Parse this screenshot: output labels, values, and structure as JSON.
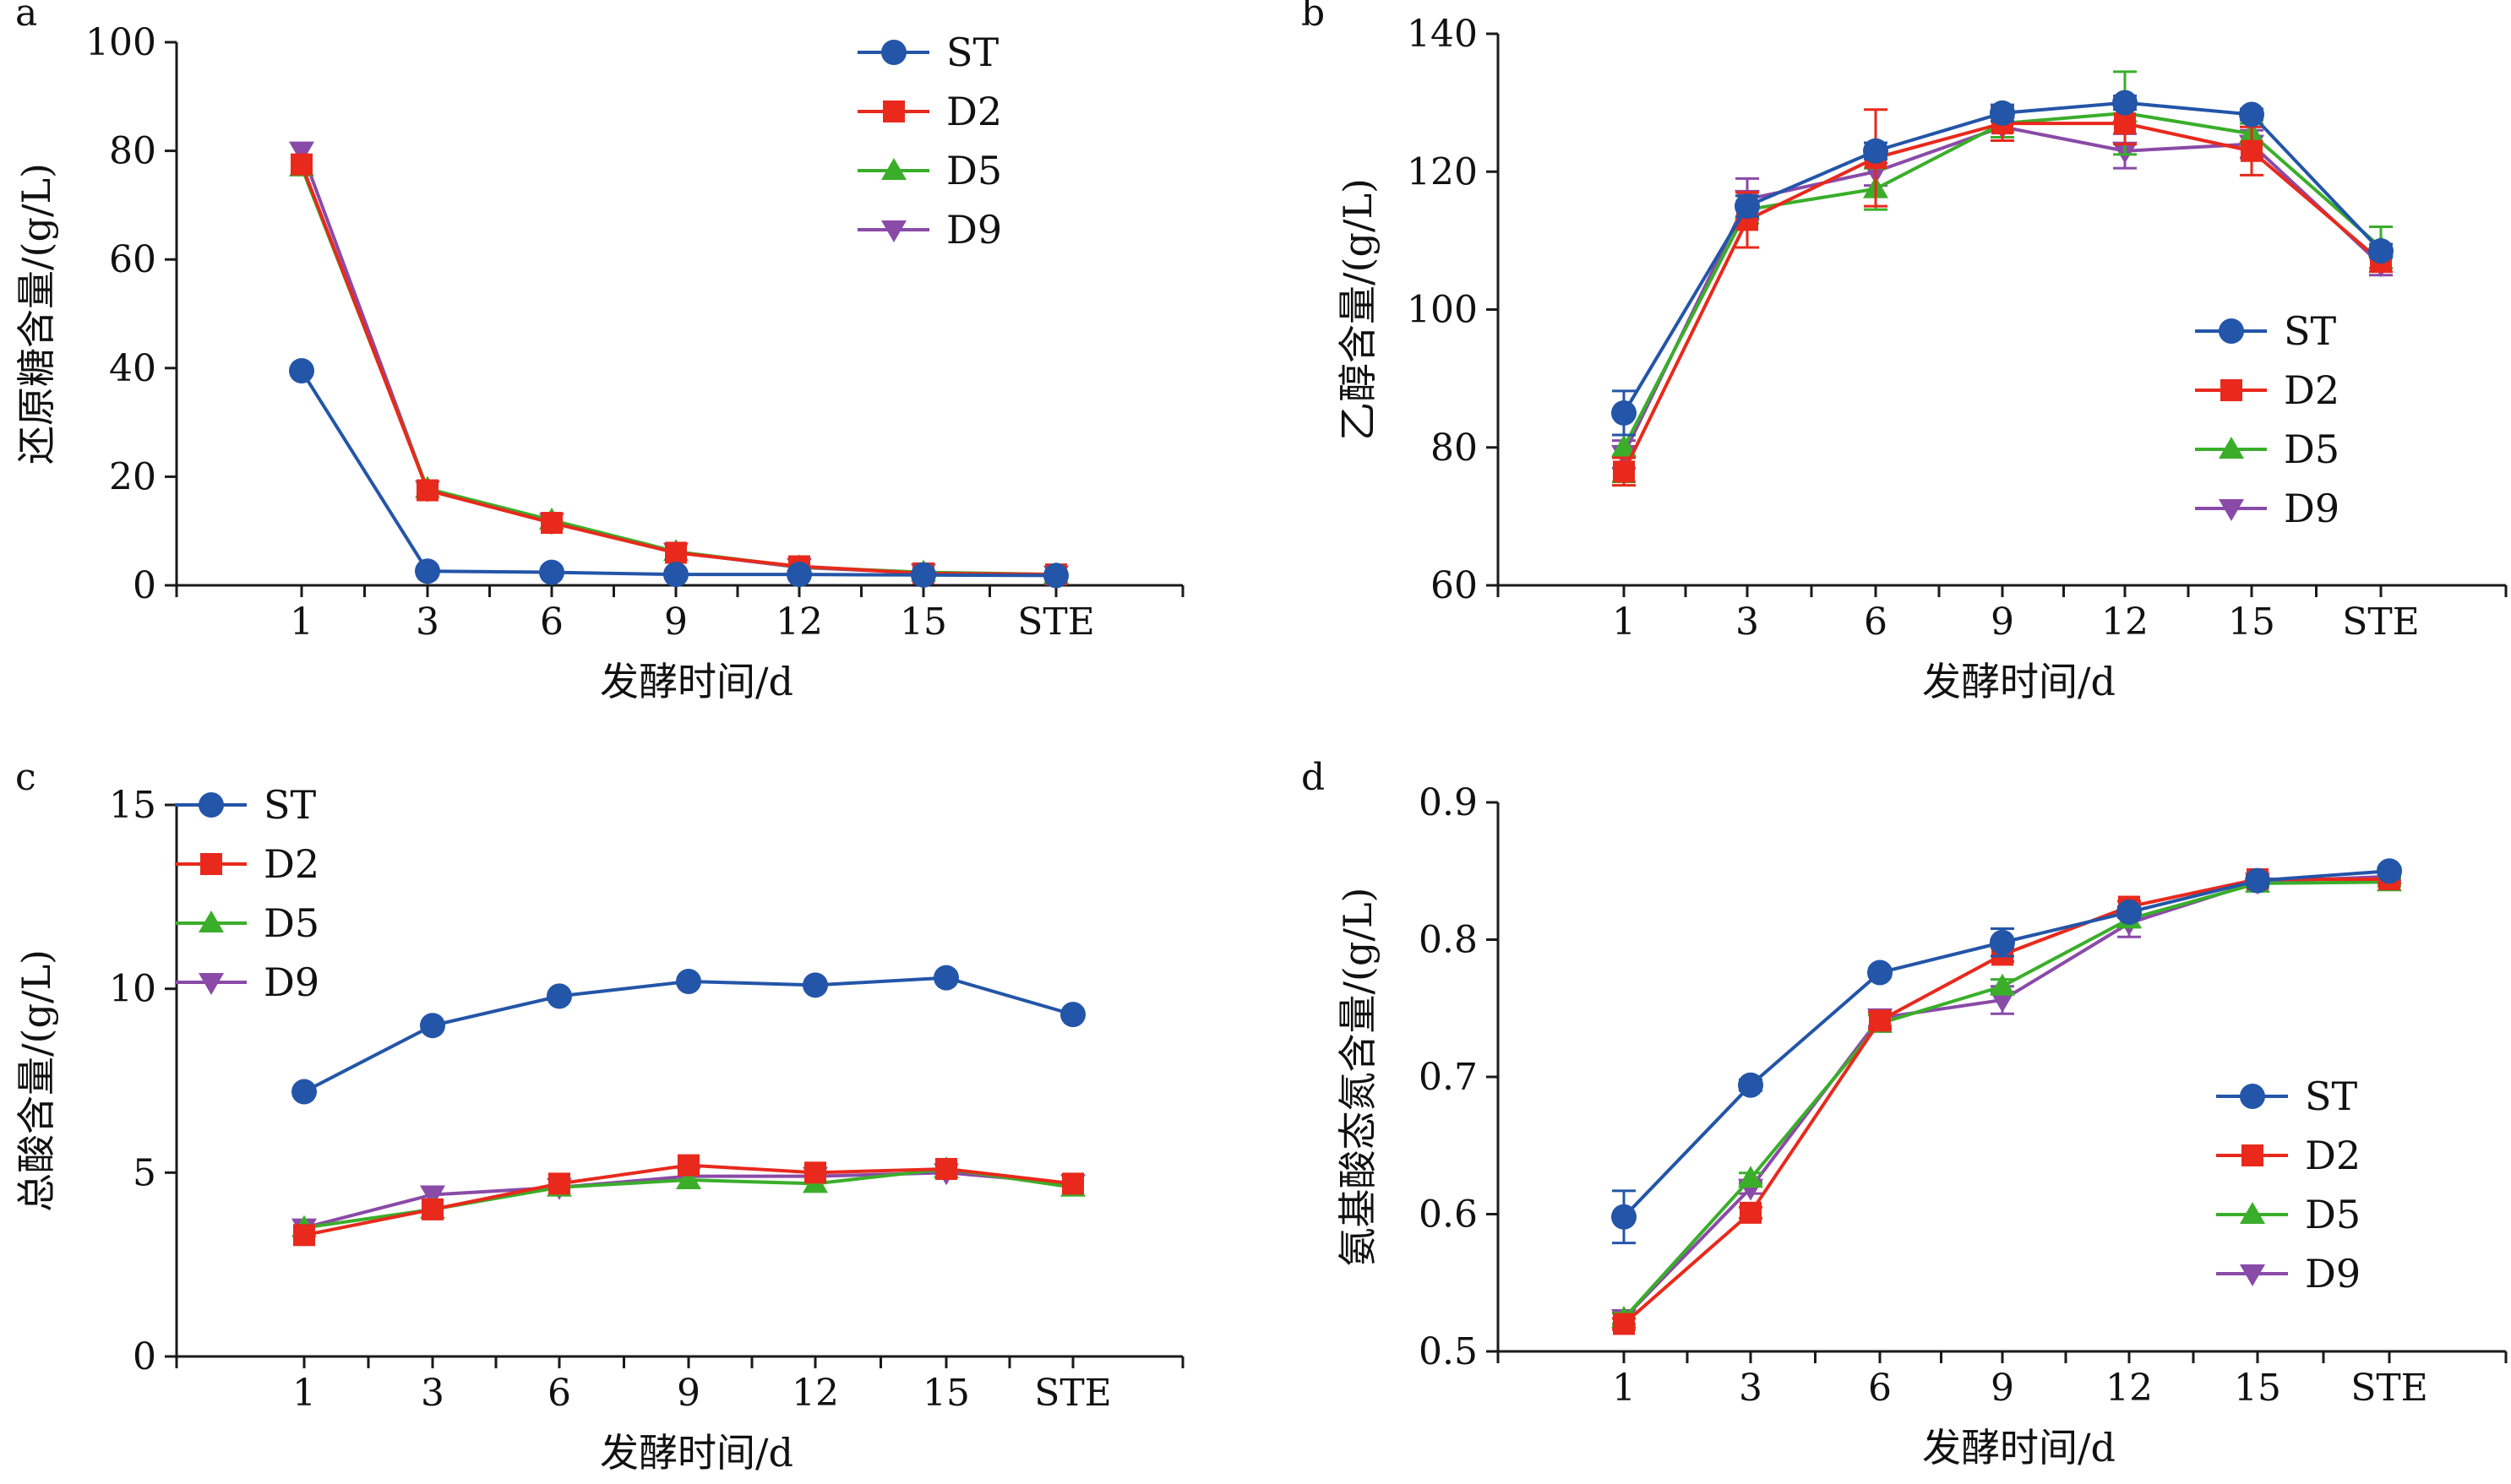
{
  "legend_labels": [
    "ST",
    "D2",
    "D5",
    "D9"
  ],
  "series_colors": {
    "ST": "#2355a8",
    "D2": "#e8291c",
    "D5": "#3aae2a",
    "D9": "#8a4aa8"
  },
  "series_markers": {
    "ST": "circle",
    "D2": "square",
    "D5": "triangle-up",
    "D9": "triangle-down"
  },
  "chart_data": [
    {
      "panel": "a",
      "type": "line",
      "xlabel": "发酵时间/d",
      "ylabel": "还原糖含量/(g/L)",
      "categories": [
        "1",
        "3",
        "6",
        "9",
        "12",
        "15",
        "STE"
      ],
      "ylim": [
        0,
        100
      ],
      "yticks": [
        "0",
        "20",
        "40",
        "60",
        "80",
        "100"
      ],
      "legend_position": "top-right",
      "series": [
        {
          "name": "ST",
          "values": [
            39.5,
            2.6,
            2.4,
            2.0,
            2.0,
            1.9,
            1.8
          ]
        },
        {
          "name": "D2",
          "values": [
            77.5,
            17.5,
            11.5,
            6.0,
            3.5,
            2.2,
            2.0
          ]
        },
        {
          "name": "D5",
          "values": [
            77.0,
            17.8,
            12.0,
            6.2,
            3.4,
            2.4,
            2.0
          ]
        },
        {
          "name": "D9",
          "values": [
            80.0,
            17.6,
            11.6,
            6.1,
            3.3,
            2.3,
            1.9
          ]
        }
      ]
    },
    {
      "panel": "b",
      "type": "line",
      "xlabel": "发酵时间/d",
      "ylabel": "乙醇含量/(g/L)",
      "categories": [
        "1",
        "3",
        "6",
        "9",
        "12",
        "15",
        "STE"
      ],
      "ylim": [
        60,
        140
      ],
      "yticks": [
        "60",
        "80",
        "100",
        "120",
        "140"
      ],
      "legend_position": "center-right",
      "series": [
        {
          "name": "ST",
          "values": [
            85.0,
            115.0,
            123.0,
            128.5,
            130.0,
            128.3,
            108.5
          ],
          "errors": [
            3.2,
            1.5,
            1.2,
            1.2,
            1.0,
            0.8,
            1.0
          ]
        },
        {
          "name": "D2",
          "values": [
            76.5,
            113.0,
            122.0,
            127.0,
            127.0,
            123.0,
            107.0
          ],
          "errors": [
            2.0,
            4.0,
            7.0,
            2.5,
            3.0,
            3.5,
            1.5
          ]
        },
        {
          "name": "D5",
          "values": [
            80.0,
            114.5,
            117.5,
            127.0,
            128.5,
            125.5,
            109.0
          ],
          "errors": [
            5.0,
            2.0,
            3.0,
            2.0,
            6.0,
            1.5,
            3.0
          ]
        },
        {
          "name": "D9",
          "values": [
            79.0,
            116.0,
            120.0,
            126.5,
            123.0,
            124.0,
            106.5
          ],
          "errors": [
            2.0,
            3.0,
            2.0,
            2.0,
            2.5,
            2.0,
            1.5
          ]
        }
      ]
    },
    {
      "panel": "c",
      "type": "line",
      "xlabel": "发酵时间/d",
      "ylabel": "总酸含量/(g/L)",
      "categories": [
        "1",
        "3",
        "6",
        "9",
        "12",
        "15",
        "STE"
      ],
      "ylim": [
        0,
        15
      ],
      "yticks": [
        "0",
        "5",
        "10",
        "15"
      ],
      "legend_position": "top-left",
      "series": [
        {
          "name": "ST",
          "values": [
            7.2,
            9.0,
            9.8,
            10.2,
            10.1,
            10.3,
            9.3
          ]
        },
        {
          "name": "D2",
          "values": [
            3.3,
            4.0,
            4.7,
            5.2,
            5.0,
            5.1,
            4.7
          ]
        },
        {
          "name": "D5",
          "values": [
            3.5,
            4.0,
            4.6,
            4.8,
            4.7,
            5.1,
            4.6
          ]
        },
        {
          "name": "D9",
          "values": [
            3.5,
            4.4,
            4.6,
            4.9,
            4.9,
            5.0,
            4.7
          ]
        }
      ]
    },
    {
      "panel": "d",
      "type": "line",
      "xlabel": "发酵时间/d",
      "ylabel": "氨基酸态氮含量/(g/L)",
      "categories": [
        "1",
        "3",
        "6",
        "9",
        "12",
        "15",
        "STE"
      ],
      "ylim": [
        0.5,
        0.9
      ],
      "yticks": [
        "0.5",
        "0.6",
        "0.7",
        "0.8",
        "0.9"
      ],
      "legend_position": "center-right",
      "series": [
        {
          "name": "ST",
          "values": [
            0.598,
            0.694,
            0.776,
            0.798,
            0.82,
            0.843,
            0.85
          ],
          "errors": [
            0.019,
            0.004,
            0.003,
            0.01,
            0.004,
            0.003,
            0.003
          ]
        },
        {
          "name": "D2",
          "values": [
            0.52,
            0.601,
            0.741,
            0.789,
            0.824,
            0.844,
            0.844
          ],
          "errors": [
            0.004,
            0.004,
            0.006,
            0.005,
            0.004,
            0.003,
            0.003
          ]
        },
        {
          "name": "D5",
          "values": [
            0.524,
            0.626,
            0.739,
            0.766,
            0.815,
            0.841,
            0.842
          ],
          "errors": [
            0.004,
            0.004,
            0.006,
            0.005,
            0.006,
            0.003,
            0.003
          ]
        },
        {
          "name": "D9",
          "values": [
            0.524,
            0.619,
            0.743,
            0.756,
            0.812,
            0.842,
            0.846
          ],
          "errors": [
            0.004,
            0.004,
            0.006,
            0.01,
            0.01,
            0.003,
            0.003
          ]
        }
      ]
    }
  ]
}
